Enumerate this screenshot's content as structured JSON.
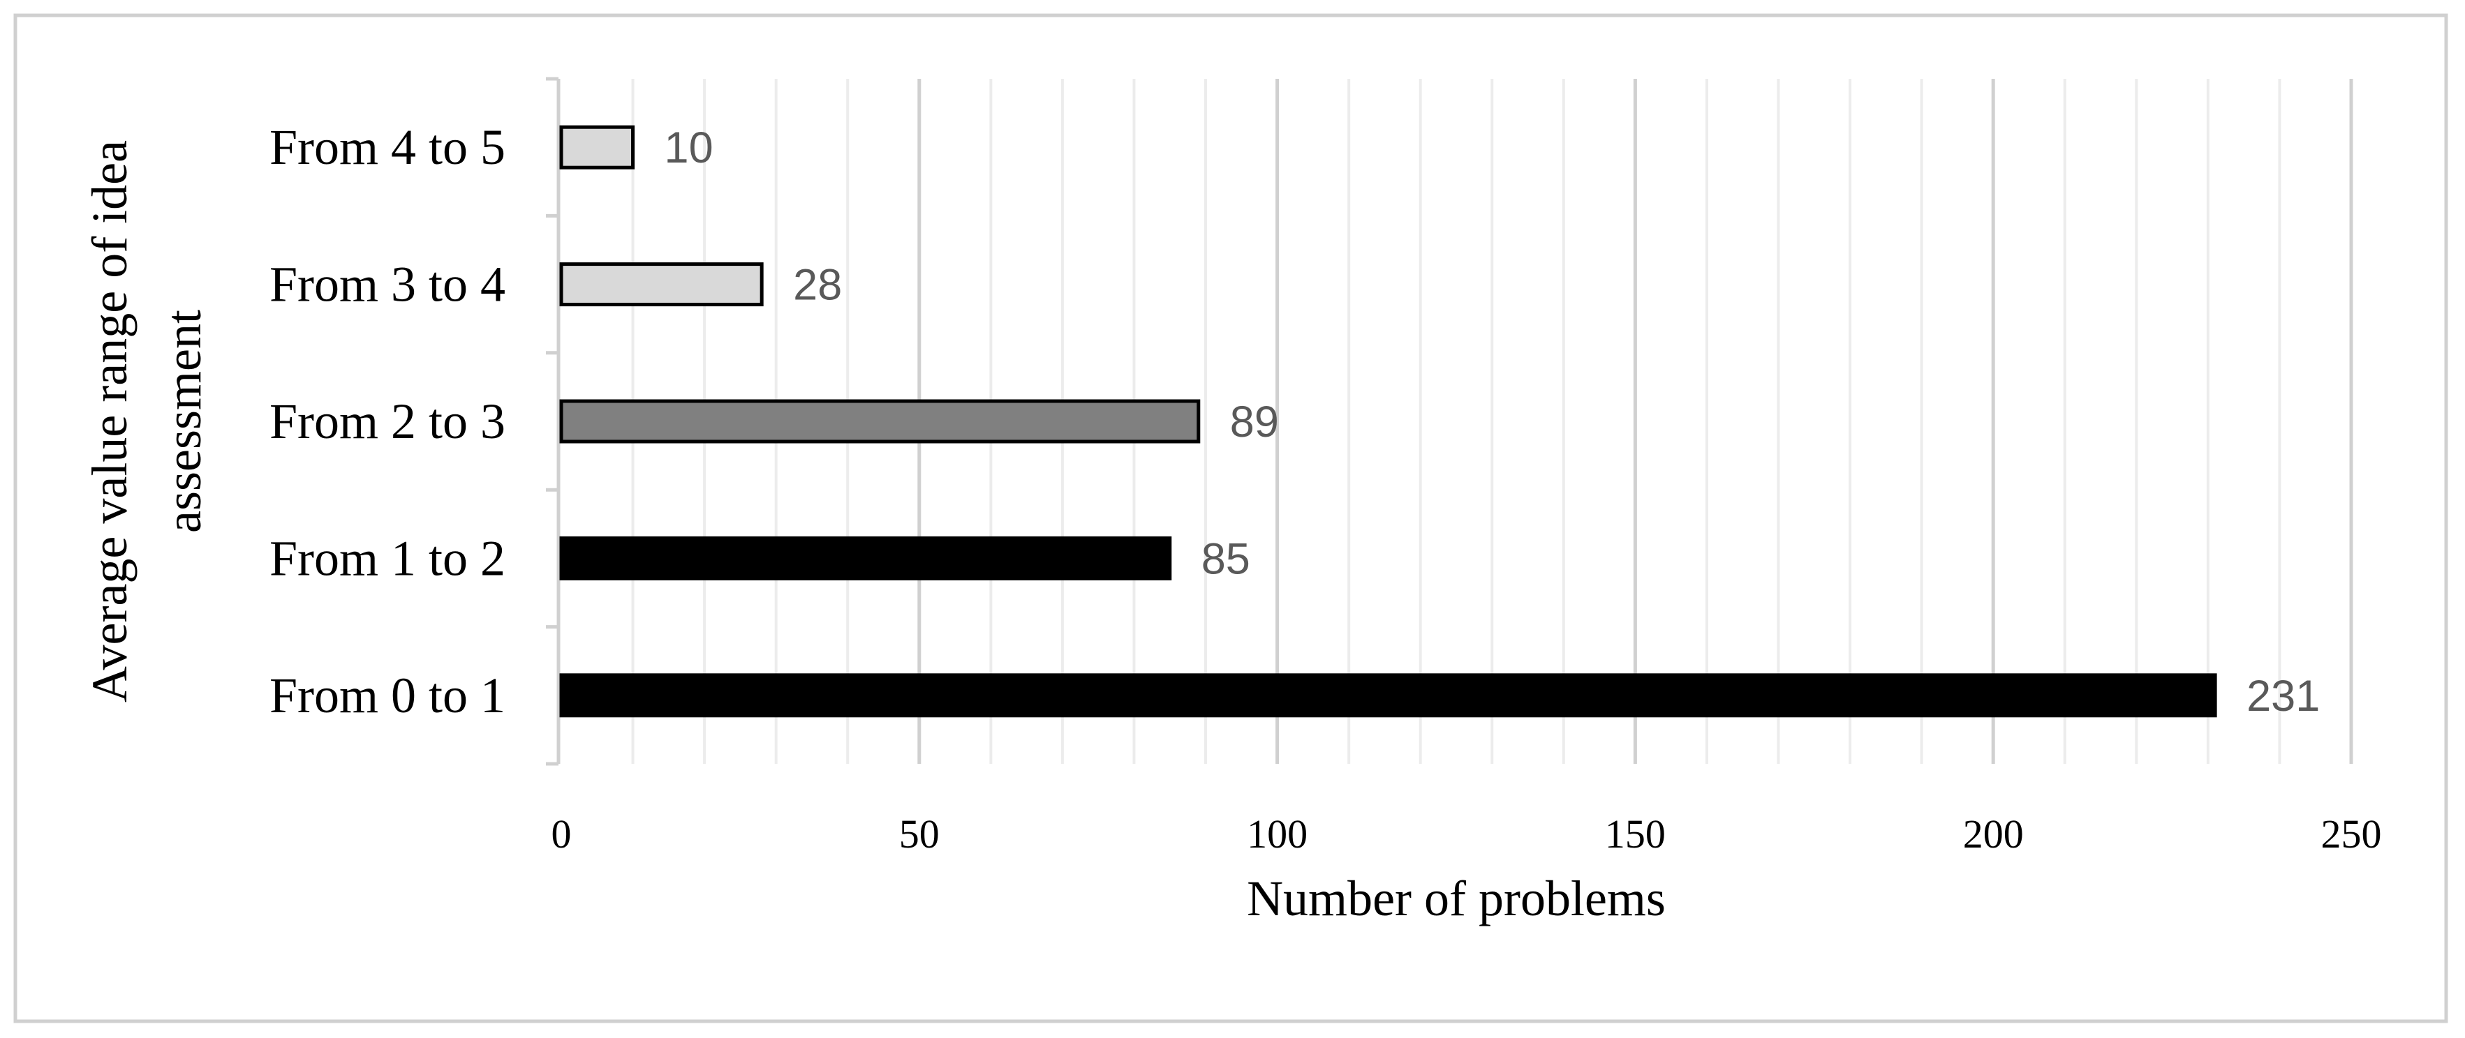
{
  "chart_data": {
    "type": "bar",
    "orientation": "horizontal",
    "x_label": "Number of problems",
    "y_label": "Average value range of idea assessment",
    "categories": [
      "From 4 to 5",
      "From 3 to 4",
      "From 2 to 3",
      "From 1 to 2",
      "From 0 to 1"
    ],
    "values": [
      10,
      28,
      89,
      85,
      231
    ],
    "colors": [
      "#d9d9d9",
      "#d9d9d9",
      "#808080",
      "#000000",
      "#000000"
    ],
    "xlim": [
      0,
      250
    ],
    "xticks": [
      0,
      50,
      100,
      150,
      200,
      250
    ],
    "grid": true
  }
}
